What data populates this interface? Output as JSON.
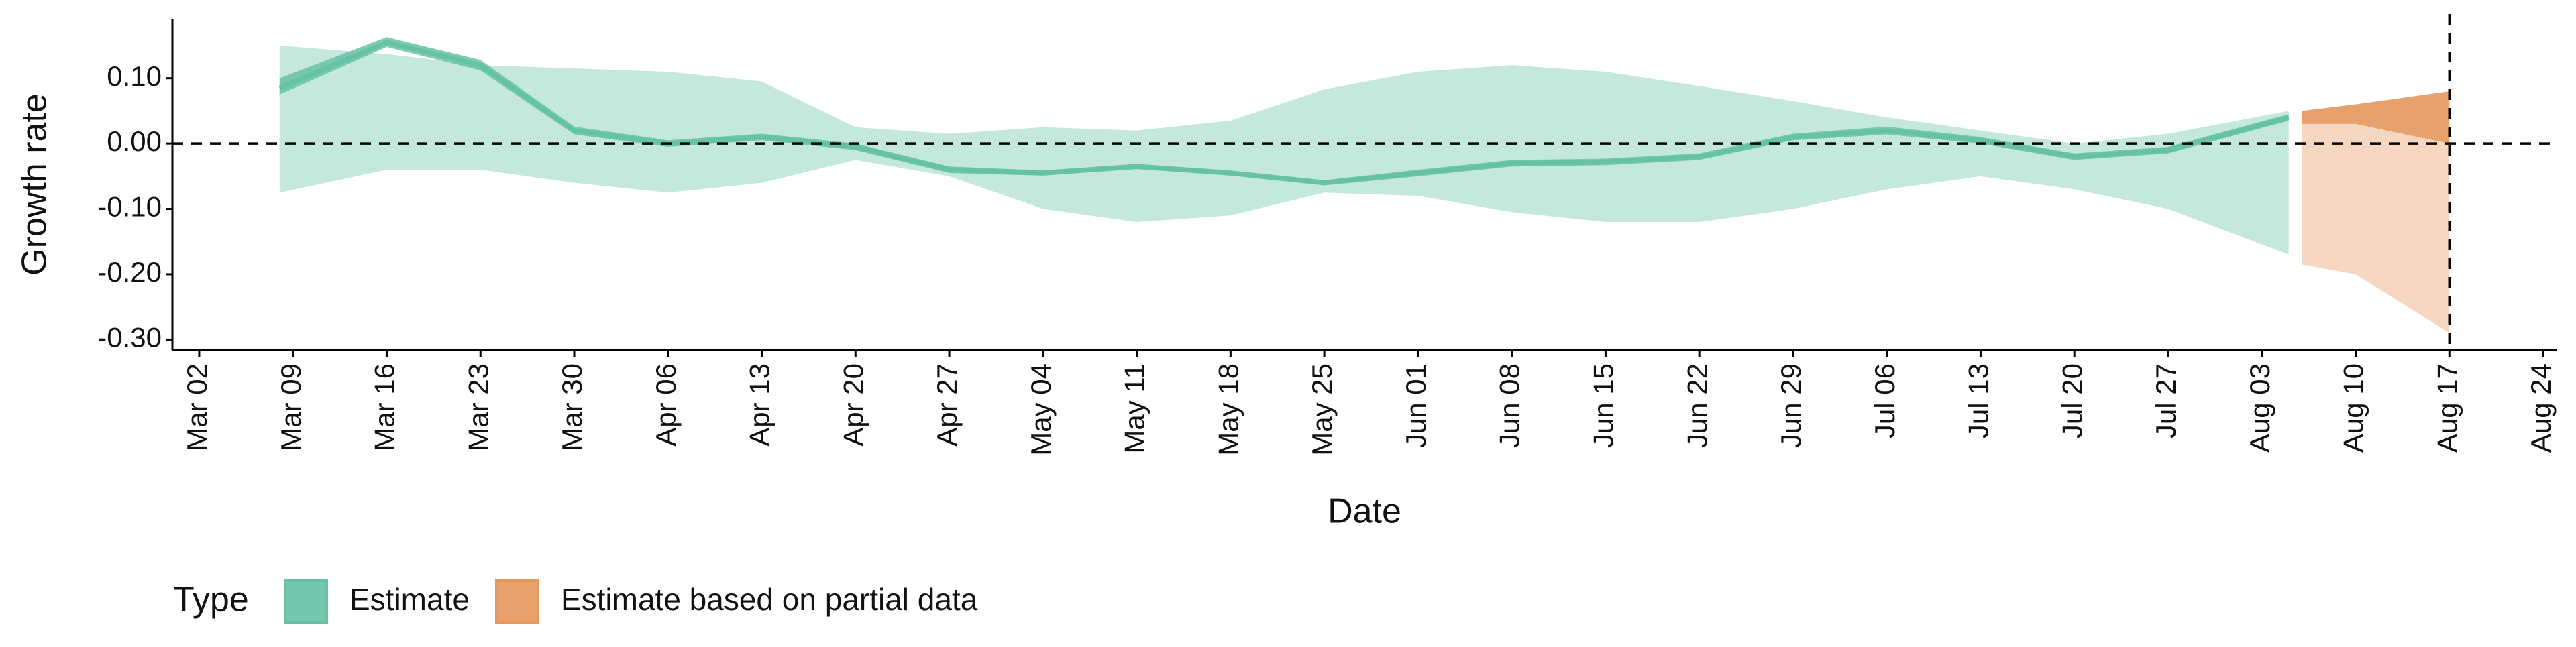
{
  "chart_data": {
    "type": "ribbon",
    "x_label": "Date",
    "y_label": "Growth rate",
    "legend_title": "Type",
    "xlim": [
      "Feb 29",
      "Aug 25"
    ],
    "xticks": [
      "Mar 02",
      "Mar 09",
      "Mar 16",
      "Mar 23",
      "Mar 30",
      "Apr 06",
      "Apr 13",
      "Apr 20",
      "Apr 27",
      "May 04",
      "May 11",
      "May 18",
      "May 25",
      "Jun 01",
      "Jun 08",
      "Jun 15",
      "Jun 22",
      "Jun 29",
      "Jul 06",
      "Jul 13",
      "Jul 20",
      "Jul 27",
      "Aug 03",
      "Aug 10",
      "Aug 17",
      "Aug 24"
    ],
    "ylim": [
      -0.316,
      0.19
    ],
    "yticks": [
      {
        "value": 0.1,
        "label": "0.10"
      },
      {
        "value": 0,
        "label": "0.00"
      },
      {
        "value": -0.1,
        "label": "-0.10"
      },
      {
        "value": -0.2,
        "label": "-0.20"
      },
      {
        "value": -0.3,
        "label": "-0.30"
      }
    ],
    "hline": 0,
    "vline": "Aug 17",
    "series": [
      {
        "name": "Estimate",
        "color": "#66c2a5",
        "x": [
          "Mar 08",
          "Mar 16",
          "Mar 23",
          "Mar 30",
          "Apr 06",
          "Apr 13",
          "Apr 20",
          "Apr 27",
          "May 04",
          "May 11",
          "May 18",
          "May 25",
          "Jun 01",
          "Jun 08",
          "Jun 15",
          "Jun 22",
          "Jun 29",
          "Jul 06",
          "Jul 13",
          "Jul 20",
          "Jul 27",
          "Aug 05"
        ],
        "upper": [
          0.15,
          0.137,
          0.12,
          0.115,
          0.11,
          0.095,
          0.025,
          0.015,
          0.025,
          0.02,
          0.035,
          0.083,
          0.11,
          0.12,
          0.11,
          0.088,
          0.065,
          0.04,
          0.02,
          0,
          0.015,
          0.05
        ],
        "lower": [
          -0.075,
          -0.04,
          -0.04,
          -0.06,
          -0.075,
          -0.06,
          -0.025,
          -0.05,
          -0.1,
          -0.12,
          -0.11,
          -0.075,
          -0.08,
          -0.105,
          -0.12,
          -0.12,
          -0.1,
          -0.07,
          -0.05,
          -0.07,
          -0.1,
          -0.17
        ],
        "inner_upper": [
          0.1,
          0.163,
          0.128,
          0.026,
          0.005,
          0.015,
          0,
          -0.035,
          -0.041,
          -0.031,
          -0.041,
          -0.056,
          -0.04,
          -0.025,
          -0.023,
          -0.015,
          0.015,
          0.026,
          0.01,
          -0.015,
          -0.005,
          0.045
        ],
        "inner_lower": [
          0.075,
          0.148,
          0.112,
          0.014,
          -0.005,
          0.005,
          -0.01,
          -0.045,
          -0.049,
          -0.039,
          -0.049,
          -0.064,
          -0.05,
          -0.035,
          -0.033,
          -0.025,
          0.005,
          0.014,
          0,
          -0.025,
          -0.015,
          0.035
        ],
        "median": [
          0.085,
          0.155,
          0.12,
          0.02,
          0,
          0.01,
          -0.005,
          -0.04,
          -0.045,
          -0.035,
          -0.045,
          -0.06,
          -0.045,
          -0.03,
          -0.028,
          -0.02,
          0.01,
          0.02,
          0.005,
          -0.02,
          -0.01,
          0.04
        ]
      },
      {
        "name": "Estimate based on partial data",
        "color": "#e5975d",
        "x": [
          "Aug 06",
          "Aug 10",
          "Aug 17"
        ],
        "upper": [
          0.05,
          0.06,
          0.08
        ],
        "lower": [
          -0.185,
          -0.2,
          -0.29
        ],
        "inner_upper": [
          0.05,
          0.06,
          0.08
        ],
        "inner_lower": [
          0.03,
          0.03,
          0
        ]
      }
    ]
  }
}
